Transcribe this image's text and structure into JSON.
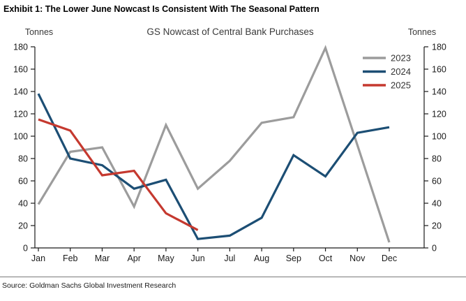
{
  "exhibit_title": "Exhibit 1: The Lower June Nowcast Is Consistent With The Seasonal Pattern",
  "source": "Source: Goldman Sachs Global Investment Research",
  "chart_data": {
    "type": "line",
    "title": "GS Nowcast of Central Bank Purchases",
    "ylabel_left": "Tonnes",
    "ylabel_right": "Tonnes",
    "categories": [
      "Jan",
      "Feb",
      "Mar",
      "Apr",
      "May",
      "Jun",
      "Jul",
      "Aug",
      "Sep",
      "Oct",
      "Nov",
      "Dec"
    ],
    "ylim": [
      0,
      180
    ],
    "ytick_step": 20,
    "grid": false,
    "legend_position": "top-right",
    "series": [
      {
        "name": "2023",
        "color": "#9c9c9c",
        "values": [
          39,
          86,
          90,
          37,
          110,
          53,
          78,
          112,
          117,
          179,
          92,
          5
        ]
      },
      {
        "name": "2024",
        "color": "#1c4e74",
        "values": [
          138,
          80,
          74,
          53,
          61,
          8,
          11,
          27,
          83,
          64,
          103,
          108
        ]
      },
      {
        "name": "2025",
        "color": "#c5392f",
        "values": [
          115,
          105,
          65,
          69,
          31,
          16
        ]
      }
    ],
    "colors": {
      "axis": "#1a1a1a",
      "tick_label": "#1a1a1a",
      "title_text": "#3a3a3a",
      "legend_text": "#333333"
    }
  }
}
